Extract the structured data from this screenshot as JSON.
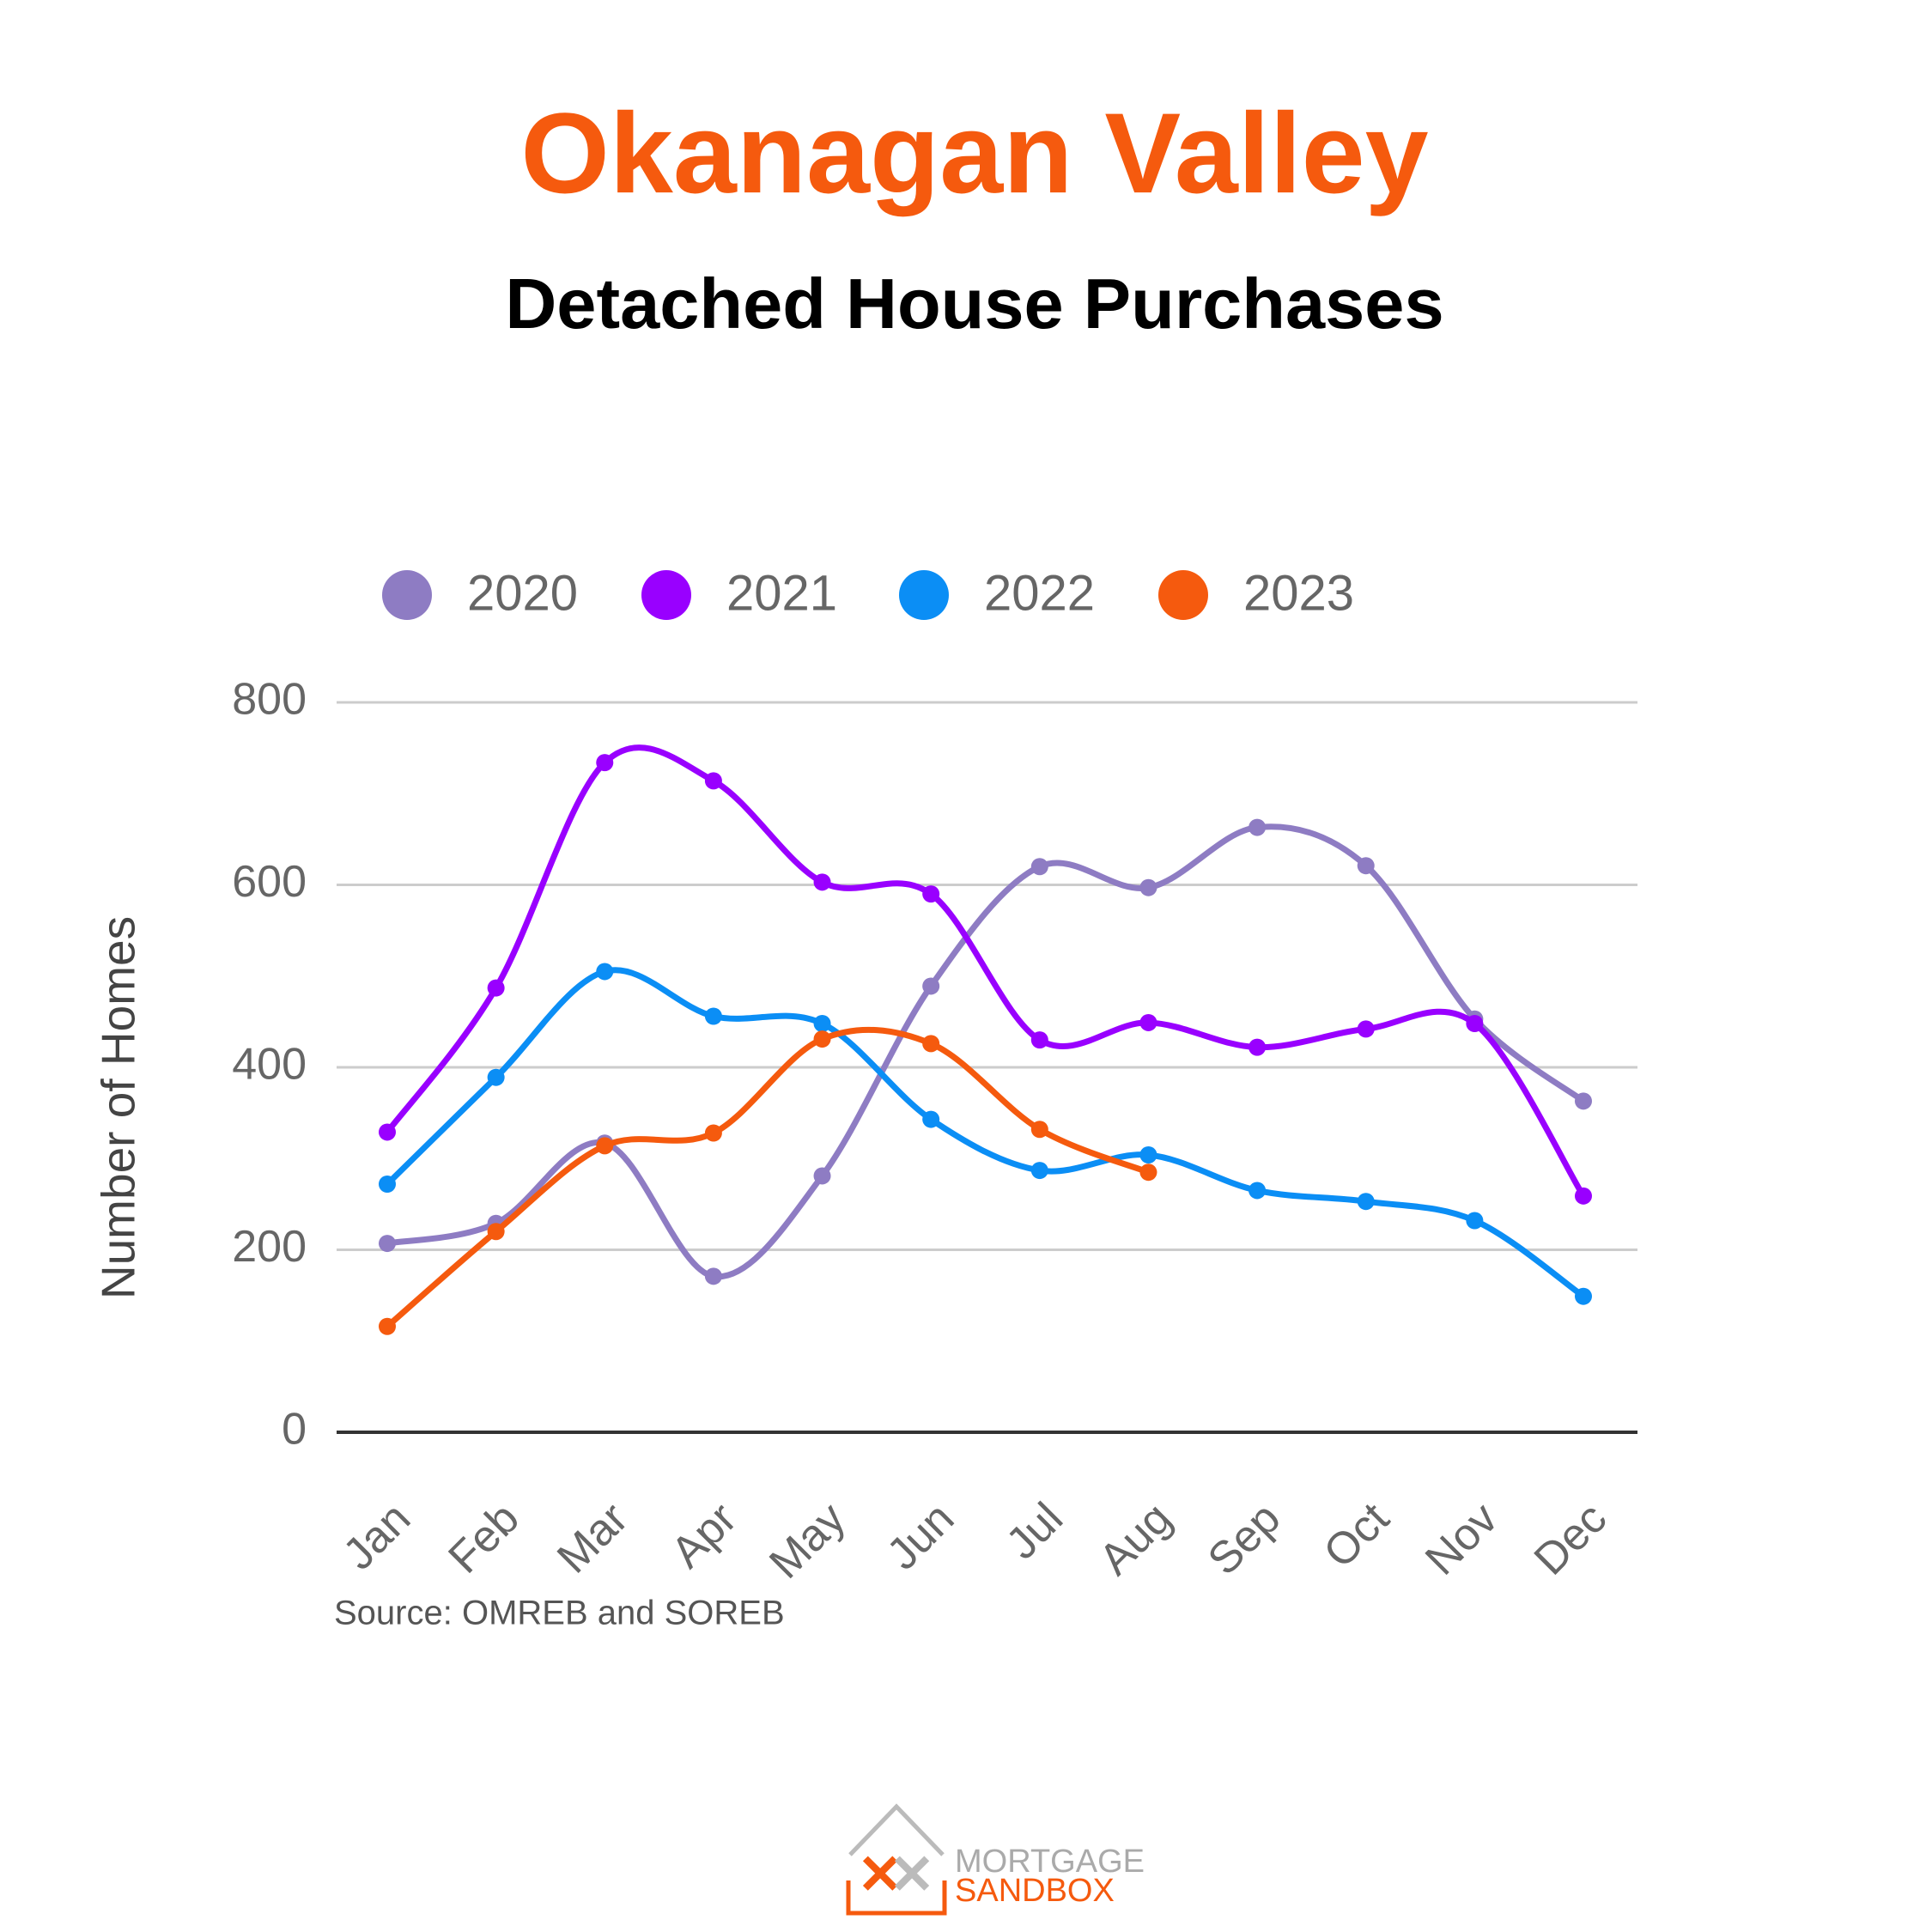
{
  "chart_data": {
    "type": "line",
    "title": "Okanagan Valley",
    "subtitle": "Detached House Purchases",
    "y_label": "Number of Homes",
    "source": "Source: OMREB and SOREB",
    "logo": {
      "top": "MORTGAGE",
      "bottom": "SANDBOX"
    },
    "categories": [
      "Jan",
      "Feb",
      "Mar",
      "Apr",
      "May",
      "Jun",
      "Jul",
      "Aug",
      "Sep",
      "Oct",
      "Nov",
      "Dec"
    ],
    "series": [
      {
        "name": "2020",
        "color": "#8e7cc3",
        "values": [
          207,
          229,
          317,
          171,
          281,
          489,
          620,
          597,
          663,
          621,
          453,
          363
        ]
      },
      {
        "name": "2021",
        "color": "#9900ff",
        "values": [
          329,
          487,
          734,
          714,
          603,
          590,
          430,
          449,
          422,
          442,
          448,
          259
        ]
      },
      {
        "name": "2022",
        "color": "#0b8ef5",
        "values": [
          272,
          389,
          505,
          456,
          448,
          343,
          287,
          304,
          265,
          253,
          232,
          149
        ]
      },
      {
        "name": "2023",
        "color": "#f55a0e",
        "values": [
          116,
          220,
          314,
          328,
          431,
          426,
          332,
          285,
          null,
          null,
          null,
          null
        ]
      }
    ],
    "ylim": [
      0,
      800
    ],
    "yticks": [
      0,
      200,
      400,
      600,
      800
    ],
    "grid": true,
    "legend": "top",
    "smooth": true
  }
}
